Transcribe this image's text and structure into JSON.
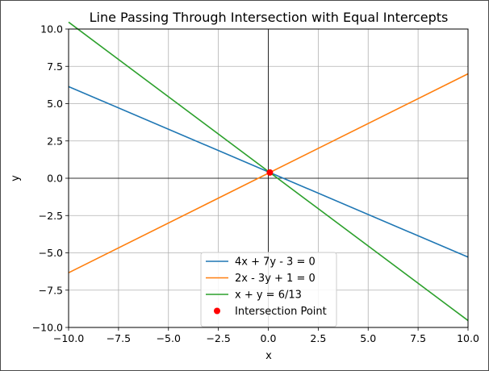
{
  "chart_data": {
    "type": "line",
    "title": "Line Passing Through Intersection with Equal Intercepts",
    "xlabel": "x",
    "ylabel": "y",
    "xlim": [
      -10,
      10
    ],
    "ylim": [
      -10,
      10
    ],
    "x_ticks": [
      -10,
      -7.5,
      -5,
      -2.5,
      0,
      2.5,
      5,
      7.5,
      10
    ],
    "y_ticks": [
      -10,
      -7.5,
      -5,
      -2.5,
      0,
      2.5,
      5,
      7.5,
      10
    ],
    "x_tick_labels": [
      "−10.0",
      "−7.5",
      "−5.0",
      "−2.5",
      "0.0",
      "2.5",
      "5.0",
      "7.5",
      "10.0"
    ],
    "y_tick_labels": [
      "−10.0",
      "−7.5",
      "−5.0",
      "−2.5",
      "0.0",
      "2.5",
      "5.0",
      "7.5",
      "10.0"
    ],
    "grid": true,
    "legend_position": "lower-center",
    "series": [
      {
        "name": "4x + 7y - 3 = 0",
        "color": "#1f77b4",
        "x": [
          -10,
          10
        ],
        "y": [
          6.143,
          -5.286
        ]
      },
      {
        "name": "2x - 3y + 1 = 0",
        "color": "#ff7f0e",
        "x": [
          -10,
          10
        ],
        "y": [
          -6.333,
          7.0
        ]
      },
      {
        "name": "x + y = 6/13",
        "color": "#2ca02c",
        "x": [
          -10,
          10
        ],
        "y": [
          10.462,
          -9.538
        ]
      }
    ],
    "points": [
      {
        "name": "Intersection Point",
        "color": "#ff0000",
        "x": 0.0769,
        "y": 0.3846
      }
    ]
  }
}
